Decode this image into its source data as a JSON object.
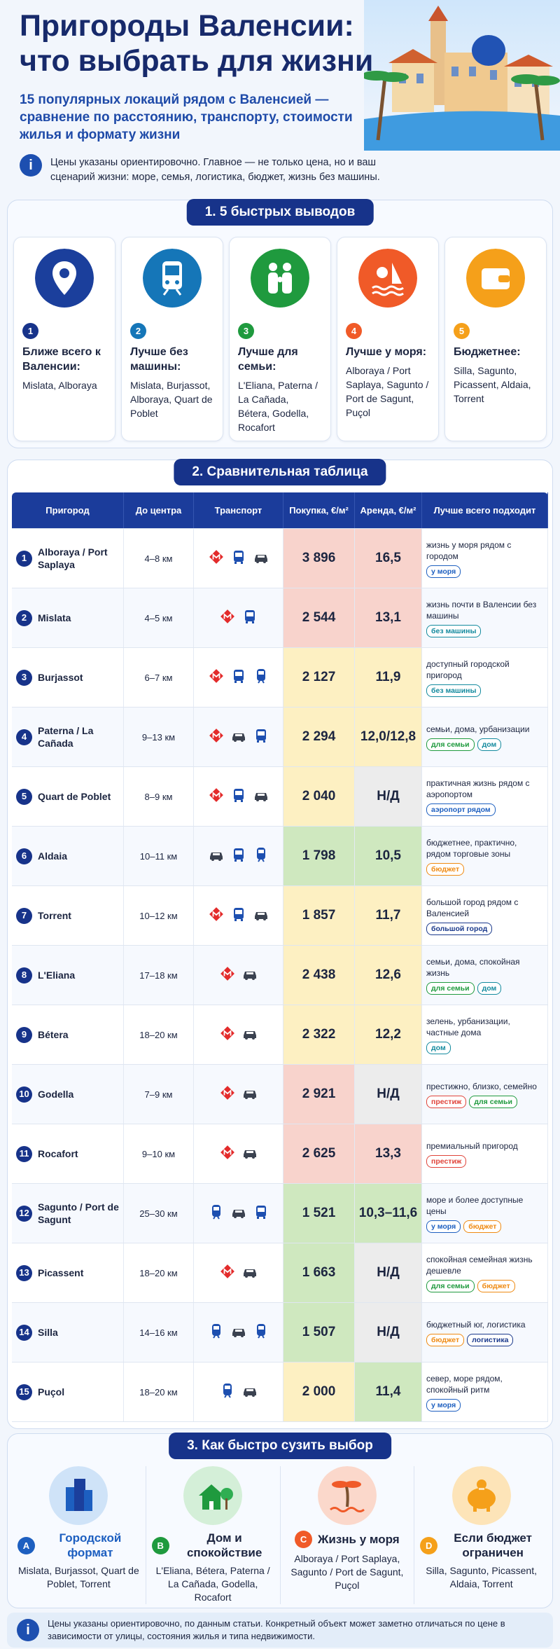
{
  "header": {
    "title": "Пригороды Валенсии: что выбрать для жизни",
    "subtitle": "15 популярных локаций рядом с Валенсией — сравнение по расстоянию, транспорту, стоимости жилья и формату жизни",
    "note": "Цены указаны ориентировочно. Главное — не только цена, но и ваш сценарий жизни: море, семья, логистика, бюджет, жизнь без машины."
  },
  "conclusions": {
    "heading": "1. 5 быстрых выводов",
    "cards": [
      {
        "num": "1",
        "title": "Ближе всего к Валенсии:",
        "text": "Mislata, Alboraya"
      },
      {
        "num": "2",
        "title": "Лучше без машины:",
        "text": "Mislata, Burjassot, Alboraya, Quart de Poblet"
      },
      {
        "num": "3",
        "title": "Лучше для семьи:",
        "text": "L'Eliana, Paterna / La Cañada, Bétera, Godella, Rocafort"
      },
      {
        "num": "4",
        "title": "Лучше у моря:",
        "text": "Alboraya / Port Saplaya, Sagunto / Port de Sagunt, Puçol"
      },
      {
        "num": "5",
        "title": "Бюджетнее:",
        "text": "Silla, Sagunto, Picassent, Aldaia, Torrent"
      }
    ]
  },
  "table": {
    "heading": "2. Сравнительная таблица",
    "columns": [
      "Пригород",
      "До центра",
      "Транспорт",
      "Покупка, €/м²",
      "Аренда, €/м²",
      "Лучше всего подходит"
    ],
    "rows": [
      {
        "num": "1",
        "suburb": "Alboraya / Port Saplaya",
        "distance": "4–8 км",
        "purchase": "3 896",
        "rent": "16,5",
        "best": "жизнь у моря рядом с городом",
        "tags": [
          "у моря"
        ]
      },
      {
        "num": "2",
        "suburb": "Mislata",
        "distance": "4–5 км",
        "purchase": "2 544",
        "rent": "13,1",
        "best": "жизнь почти в Валенсии без машины",
        "tags": [
          "без машины"
        ]
      },
      {
        "num": "3",
        "suburb": "Burjassot",
        "distance": "6–7 км",
        "purchase": "2 127",
        "rent": "11,9",
        "best": "доступный городской пригород",
        "tags": [
          "без машины"
        ]
      },
      {
        "num": "4",
        "suburb": "Paterna / La Cañada",
        "distance": "9–13 км",
        "purchase": "2 294",
        "rent": "12,0/12,8",
        "best": "семьи, дома, урбанизации",
        "tags": [
          "для семьи",
          "дом"
        ]
      },
      {
        "num": "5",
        "suburb": "Quart de Poblet",
        "distance": "8–9 км",
        "purchase": "2 040",
        "rent": "Н/Д",
        "best": "практичная жизнь рядом с аэропортом",
        "tags": [
          "аэропорт рядом"
        ]
      },
      {
        "num": "6",
        "suburb": "Aldaia",
        "distance": "10–11 км",
        "purchase": "1 798",
        "rent": "10,5",
        "best": "бюджетнее, практично, рядом торговые зоны",
        "tags": [
          "бюджет"
        ]
      },
      {
        "num": "7",
        "suburb": "Torrent",
        "distance": "10–12 км",
        "purchase": "1 857",
        "rent": "11,7",
        "best": "большой город рядом с Валенсией",
        "tags": [
          "большой город"
        ]
      },
      {
        "num": "8",
        "suburb": "L'Eliana",
        "distance": "17–18 км",
        "purchase": "2 438",
        "rent": "12,6",
        "best": "семьи, дома, спокойная жизнь",
        "tags": [
          "для семьи",
          "дом"
        ]
      },
      {
        "num": "9",
        "suburb": "Bétera",
        "distance": "18–20 км",
        "purchase": "2 322",
        "rent": "12,2",
        "best": "зелень, урбанизации, частные дома",
        "tags": [
          "дом"
        ]
      },
      {
        "num": "10",
        "suburb": "Godella",
        "distance": "7–9 км",
        "purchase": "2 921",
        "rent": "Н/Д",
        "best": "престижно, близко, семейно",
        "tags": [
          "престиж",
          "для семьи"
        ]
      },
      {
        "num": "11",
        "suburb": "Rocafort",
        "distance": "9–10 км",
        "purchase": "2 625",
        "rent": "13,3",
        "best": "премиальный пригород",
        "tags": [
          "престиж"
        ]
      },
      {
        "num": "12",
        "suburb": "Sagunto / Port de Sagunt",
        "distance": "25–30 км",
        "purchase": "1 521",
        "rent": "10,3–11,6",
        "best": "море и более доступные цены",
        "tags": [
          "у моря",
          "бюджет"
        ]
      },
      {
        "num": "13",
        "suburb": "Picassent",
        "distance": "18–20 км",
        "purchase": "1 663",
        "rent": "Н/Д",
        "best": "спокойная семейная жизнь дешевле",
        "tags": [
          "для семьи",
          "бюджет"
        ]
      },
      {
        "num": "14",
        "suburb": "Silla",
        "distance": "14–16 км",
        "purchase": "1 507",
        "rent": "Н/Д",
        "best": "бюджетный юг, логистика",
        "tags": [
          "бюджет",
          "логистика"
        ]
      },
      {
        "num": "15",
        "suburb": "Puçol",
        "distance": "18–20 км",
        "purchase": "2 000",
        "rent": "11,4",
        "best": "север, море рядом, спокойный ритм",
        "tags": [
          "у моря"
        ]
      }
    ]
  },
  "narrow": {
    "heading": "3. Как быстро сузить выбор",
    "options": [
      {
        "letter": "A",
        "title": "Городской формат",
        "text": "Mislata, Burjassot, Quart de Poblet, Torrent"
      },
      {
        "letter": "B",
        "title": "Дом и спокойствие",
        "text": "L'Eliana, Bétera, Paterna / La Cañada, Godella, Rocafort"
      },
      {
        "letter": "C",
        "title": "Жизнь у моря",
        "text": "Alboraya / Port Saplaya, Sagunto / Port de Sagunt, Puçol"
      },
      {
        "letter": "D",
        "title": "Если бюджет ограничен",
        "text": "Silla, Sagunto, Picassent, Aldaia, Torrent"
      }
    ]
  },
  "footer": {
    "note": "Цены указаны ориентировочно, по данным статьи. Конкретный объект может заметно отличаться по цене в зависимости от улицы, состояния жилья и типа недвижимости."
  }
}
